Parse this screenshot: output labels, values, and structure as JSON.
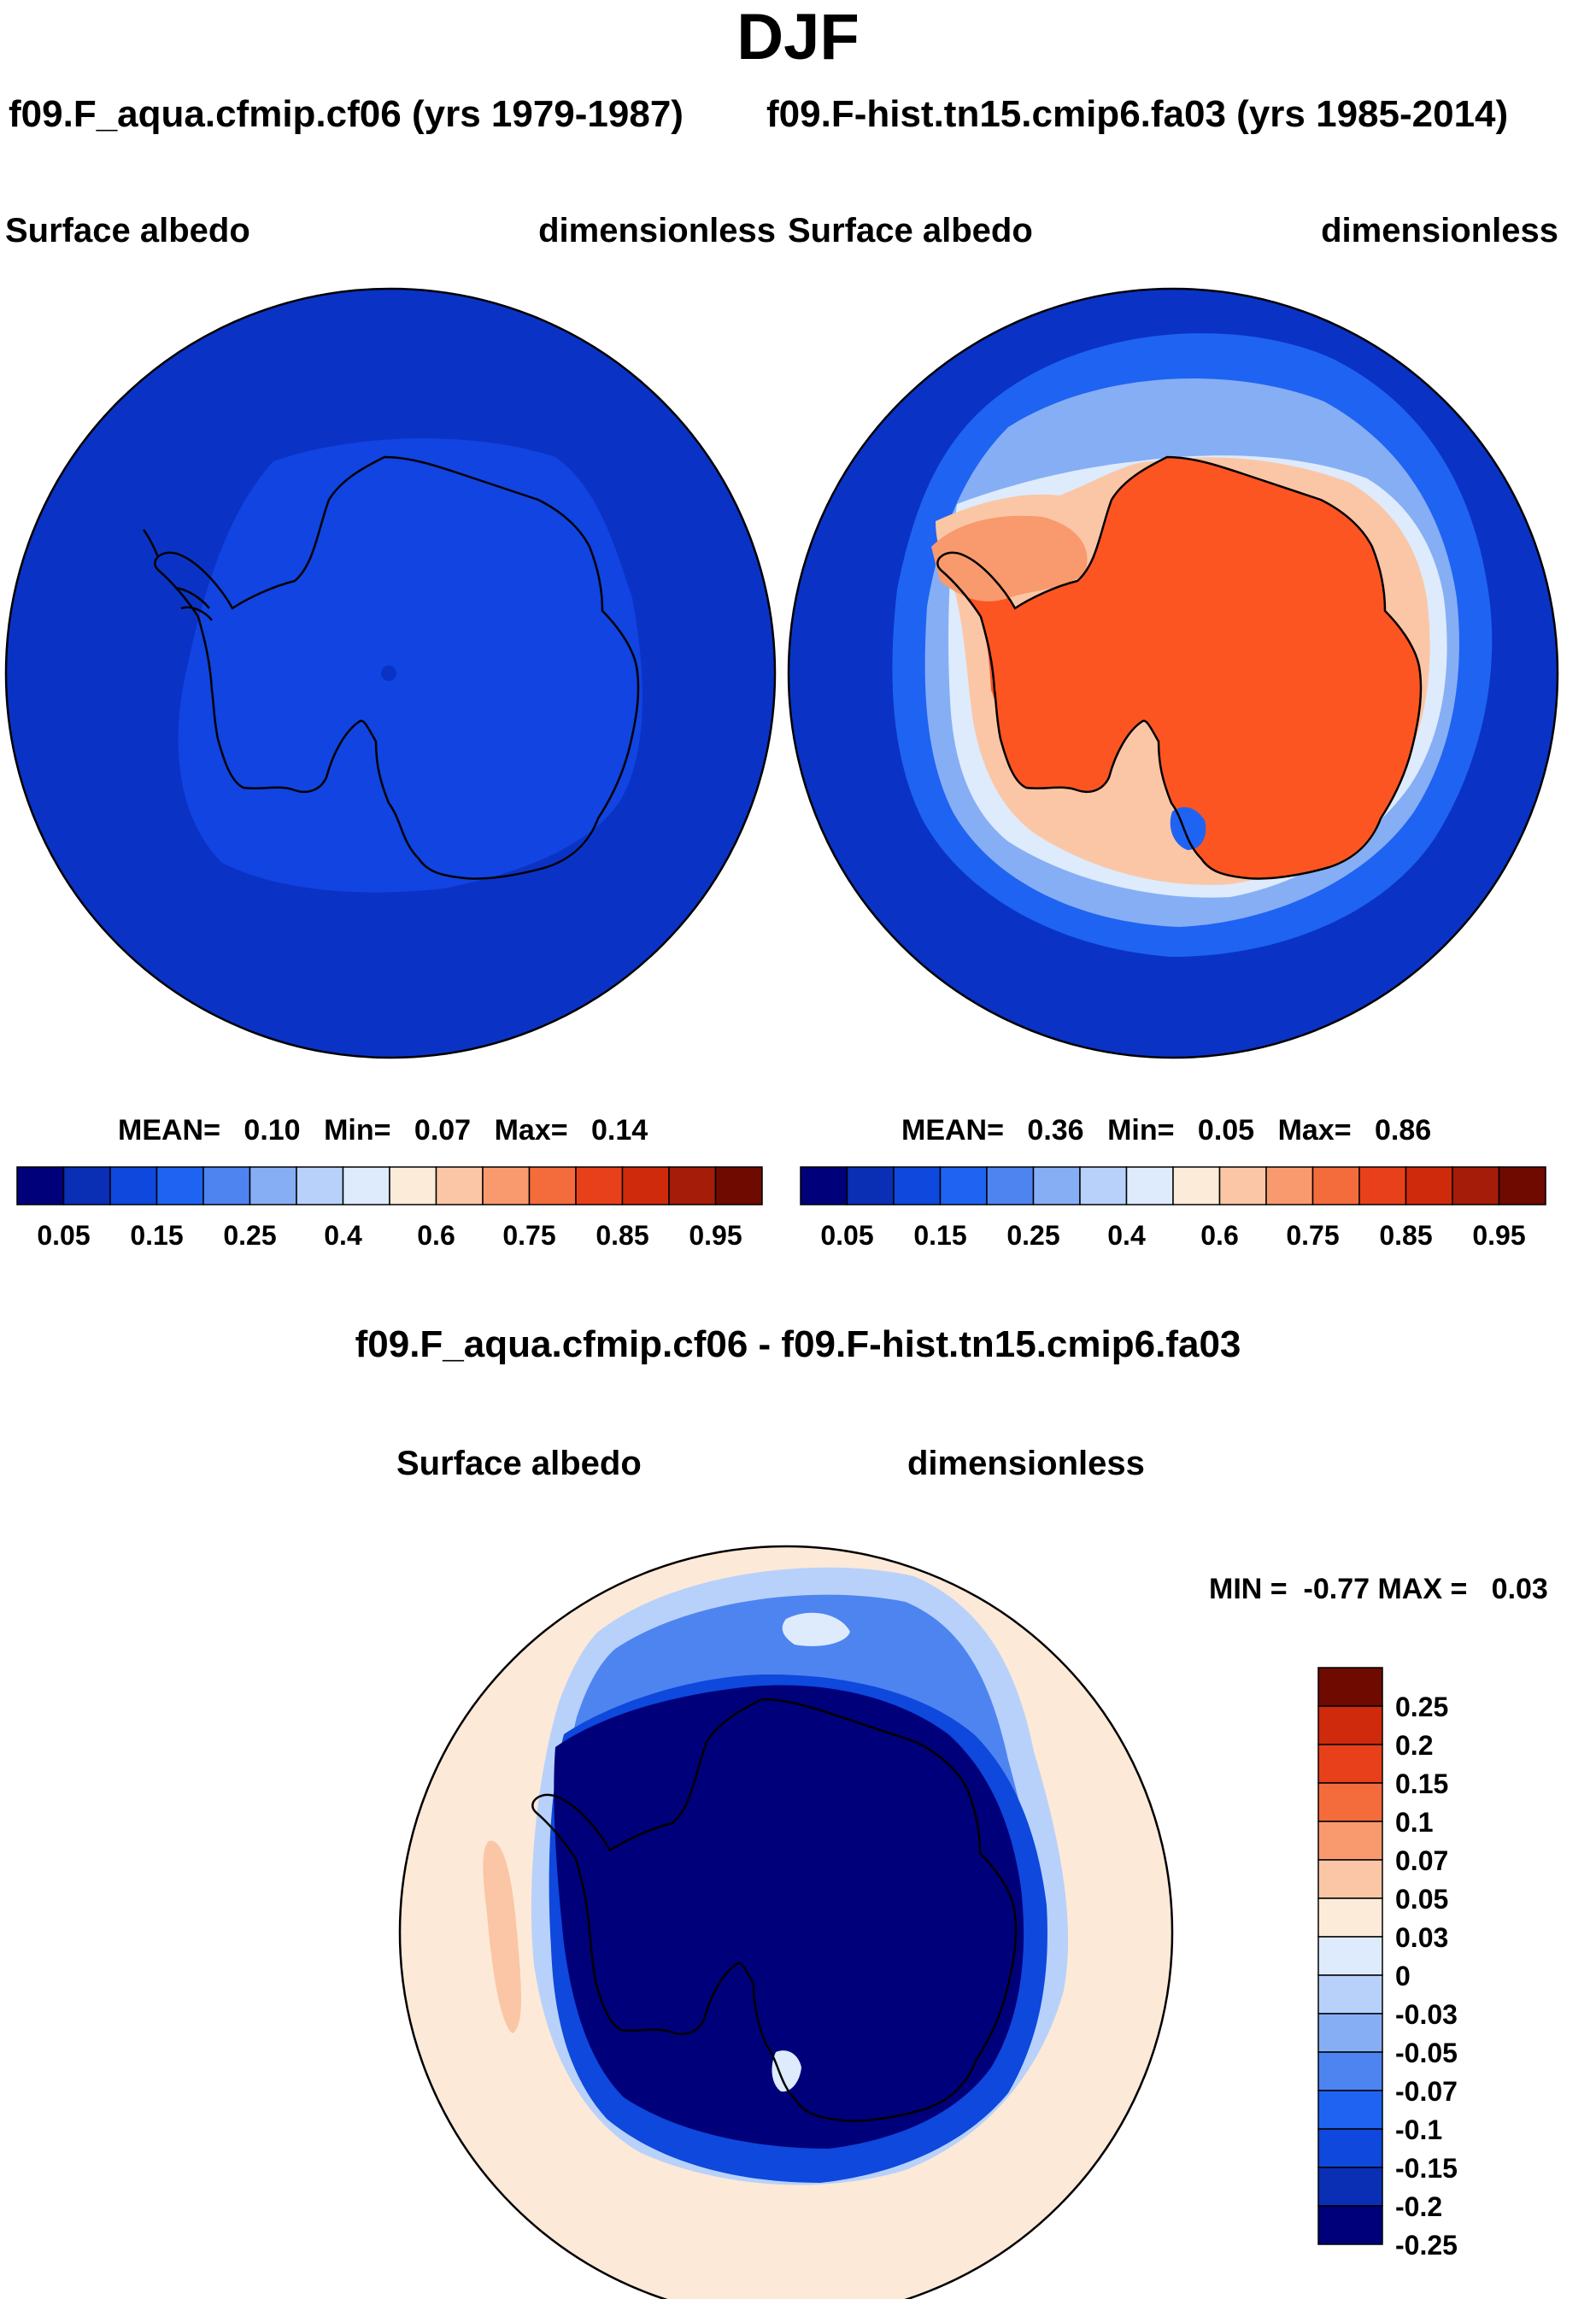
{
  "title": "DJF",
  "panels": [
    {
      "case": "f09.F_aqua.cfmip.cf06 (yrs 1979-1987)",
      "variable": "Surface albedo",
      "units": "dimensionless",
      "stats": {
        "mean_label": "MEAN=",
        "mean": "0.10",
        "min_label": "Min=",
        "min": "0.07",
        "max_label": "Max=",
        "max": "0.14"
      }
    },
    {
      "case": "f09.F-hist.tn15.cmip6.fa03 (yrs 1985-2014)",
      "variable": "Surface albedo",
      "units": "dimensionless",
      "stats": {
        "mean_label": "MEAN=",
        "mean": "0.36",
        "min_label": "Min=",
        "min": "0.05",
        "max_label": "Max=",
        "max": "0.86"
      }
    }
  ],
  "diff": {
    "title": "f09.F_aqua.cfmip.cf06 - f09.F-hist.tn15.cmip6.fa03",
    "variable": "Surface albedo",
    "units": "dimensionless",
    "minmax": "MIN =  -0.77 MAX =   0.03"
  },
  "colors": {
    "abs_scale": [
      "#00007a",
      "#0a2fb5",
      "#0e48dc",
      "#1f63f2",
      "#4d84f0",
      "#86aef5",
      "#b8d1fa",
      "#ddebfc",
      "#fdebd9",
      "#fbc6a6",
      "#f89a6e",
      "#f46b3c",
      "#e8401a",
      "#cf2a0c",
      "#a51c08",
      "#6e0a00"
    ],
    "diff_scale": [
      "#00007a",
      "#0a2fb5",
      "#0e48dc",
      "#1f63f2",
      "#4d84f0",
      "#86aef5",
      "#b8d1fa",
      "#ddebfc",
      "#fdebd9",
      "#fbc6a6",
      "#f89a6e",
      "#f46b3c",
      "#e8401a",
      "#cf2a0c",
      "#6e0a00"
    ],
    "panel1_ocean": "#0a33c6",
    "panel1_ice": "#1144e0",
    "panel2_ocean": "#0a33c6",
    "panel2_land": "#fd5522",
    "diff_ocean": "#fde9d8",
    "diff_core": "#00007a"
  },
  "chart_data": [
    {
      "type": "heatmap",
      "title": "f09.F_aqua.cfmip.cf06 (yrs 1979-1987)",
      "subtitle_left": "Surface albedo",
      "subtitle_right": "dimensionless",
      "projection": "south-polar-stereographic",
      "colorbar": {
        "orientation": "horizontal",
        "levels": [
          0.05,
          0.1,
          0.15,
          0.2,
          0.25,
          0.3,
          0.4,
          0.5,
          0.6,
          0.7,
          0.75,
          0.8,
          0.85,
          0.9,
          0.95
        ],
        "tick_labels": [
          "0.05",
          "0.15",
          "0.25",
          "0.4",
          "0.6",
          "0.75",
          "0.85",
          "0.95"
        ]
      },
      "stats": {
        "mean": 0.1,
        "min": 0.07,
        "max": 0.14
      }
    },
    {
      "type": "heatmap",
      "title": "f09.F-hist.tn15.cmip6.fa03 (yrs 1985-2014)",
      "subtitle_left": "Surface albedo",
      "subtitle_right": "dimensionless",
      "projection": "south-polar-stereographic",
      "colorbar": {
        "orientation": "horizontal",
        "levels": [
          0.05,
          0.1,
          0.15,
          0.2,
          0.25,
          0.3,
          0.4,
          0.5,
          0.6,
          0.7,
          0.75,
          0.8,
          0.85,
          0.9,
          0.95
        ],
        "tick_labels": [
          "0.05",
          "0.15",
          "0.25",
          "0.4",
          "0.6",
          "0.75",
          "0.85",
          "0.95"
        ]
      },
      "stats": {
        "mean": 0.36,
        "min": 0.05,
        "max": 0.86
      }
    },
    {
      "type": "heatmap",
      "title": "f09.F_aqua.cfmip.cf06 - f09.F-hist.tn15.cmip6.fa03",
      "subtitle_left": "Surface albedo",
      "subtitle_right": "dimensionless",
      "projection": "south-polar-stereographic",
      "colorbar": {
        "orientation": "vertical",
        "tick_labels": [
          "0.25",
          "0.2",
          "0.15",
          "0.1",
          "0.07",
          "0.05",
          "0.03",
          "0",
          "-0.03",
          "-0.05",
          "-0.07",
          "-0.1",
          "-0.15",
          "-0.2",
          "-0.25"
        ]
      },
      "stats": {
        "min": -0.77,
        "max": 0.03
      }
    }
  ]
}
